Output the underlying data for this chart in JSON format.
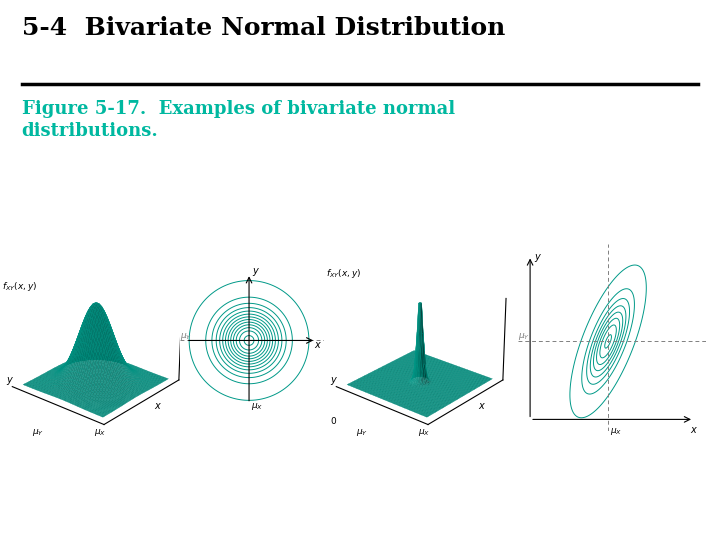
{
  "title": "5-4  Bivariate Normal Distribution",
  "caption_line1": "Figure 5-17.  Examples of bivariate normal",
  "caption_line2": "distributions.",
  "title_fontsize": 18,
  "caption_fontsize": 13,
  "title_color": "#000000",
  "caption_color": "#00b8a0",
  "background_color": "#ffffff",
  "teal_color": "#009988",
  "line_color": "#333333"
}
